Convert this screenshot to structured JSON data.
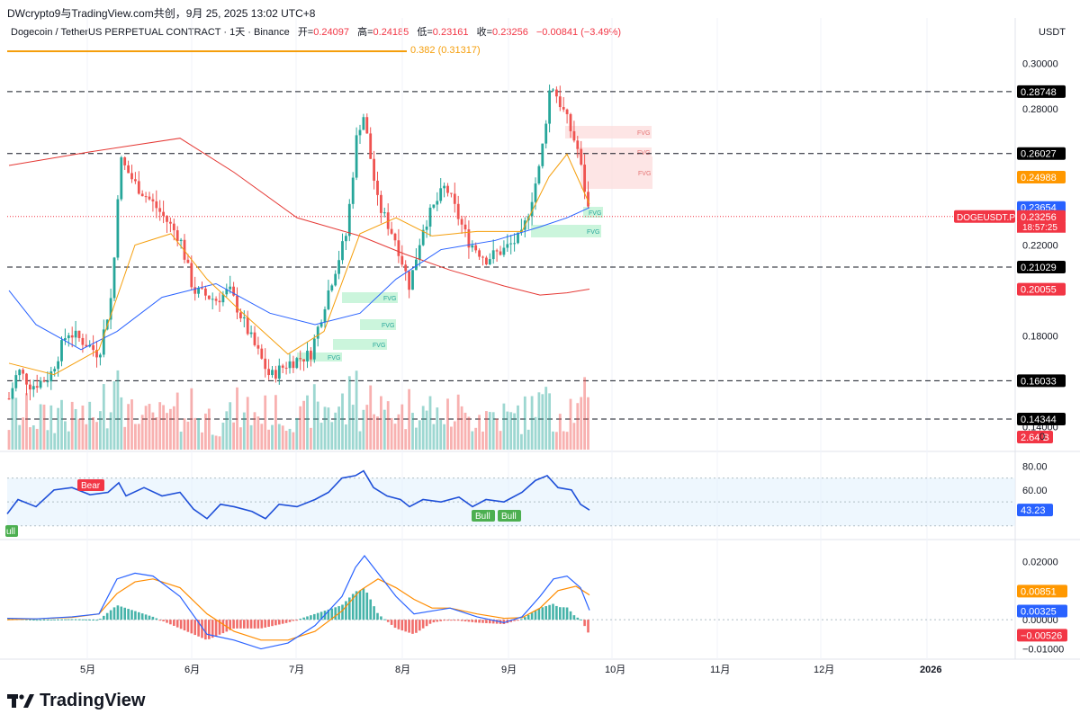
{
  "header": {
    "attribution": "DWcrypto9与TradingView.com共创，9月 25, 2025 13:02 UTC+8",
    "symbol_desc": "Dogecoin / TetherUS PERPETUAL CONTRACT · 1天 · Binance",
    "open_label": "开=",
    "open_value": "0.24097",
    "high_label": "高=",
    "high_value": "0.24185",
    "low_label": "低=",
    "low_value": "0.23161",
    "close_label": "收=",
    "close_value": "0.23256",
    "change": "−0.00841 (−3.49%)",
    "currency": "USDT",
    "fib_label": "0.382 (0.31317)"
  },
  "colors": {
    "up": "#26a69a",
    "down": "#ef5350",
    "ema_fast": "#f59e0b",
    "ema_mid": "#2962ff",
    "ema_slow": "#e53935",
    "rsi": "#1e4fd8",
    "macd": "#2962ff",
    "signal": "#ff8c00",
    "fvg_green": "#b9f2d0",
    "fvg_red": "#fcdcdc"
  },
  "price_axis": {
    "ticks": [
      "0.30000",
      "0.28000",
      "0.22000",
      "0.18000",
      "0.14000"
    ],
    "badges": [
      {
        "label": "0.28748",
        "value": 0.28748,
        "bg": "#000000"
      },
      {
        "label": "0.26027",
        "value": 0.26027,
        "bg": "#000000"
      },
      {
        "label": "0.24988",
        "value": 0.24988,
        "bg": "#ff9800"
      },
      {
        "label": "0.23654",
        "value": 0.23654,
        "bg": "#2962ff"
      },
      {
        "label": "0.23256",
        "value": 0.23256,
        "bg": "#f23645"
      },
      {
        "label": "0.21029",
        "value": 0.21029,
        "bg": "#000000"
      },
      {
        "label": "0.20055",
        "value": 0.20055,
        "bg": "#f23645"
      },
      {
        "label": "0.16033",
        "value": 0.16033,
        "bg": "#000000"
      },
      {
        "label": "0.14344",
        "value": 0.14344,
        "bg": "#000000"
      }
    ],
    "symbol_tag": "DOGEUSDT.P",
    "countdown": "18:57:25",
    "volume_badge": "2.64 B",
    "volume_tick": "0"
  },
  "rsi_axis": {
    "ticks": [
      "80.00",
      "60.00"
    ],
    "badge": "43.23"
  },
  "macd_axis": {
    "ticks": [
      "0.02000",
      "0.00000",
      "−0.01000"
    ],
    "badges": [
      {
        "label": "0.00851",
        "bg": "#ff9800"
      },
      {
        "label": "0.00325",
        "bg": "#2962ff"
      },
      {
        "label": "−0.00526",
        "bg": "#f23645"
      }
    ]
  },
  "time_axis": [
    "5月",
    "6月",
    "7月",
    "8月",
    "9月",
    "10月",
    "11月",
    "12月",
    "2026"
  ],
  "annotations": {
    "fvg": "FVG",
    "bear": "Bear",
    "bull": "Bull",
    "bull_partial": "ull"
  },
  "brand": "TradingView",
  "chart_data": {
    "type": "candlestick",
    "title": "Dogecoin / TetherUS PERPETUAL CONTRACT · 1天 · Binance",
    "ylim": [
      0.13,
      0.31
    ],
    "horizontal_levels": [
      0.28748,
      0.26027,
      0.21029,
      0.16033,
      0.14344
    ],
    "fib_level": {
      "label": "0.382",
      "value": 0.31317
    },
    "anchors": [
      {
        "x": 10,
        "v": 0.1525
      },
      {
        "x": 20,
        "v": 0.165
      },
      {
        "x": 35,
        "v": 0.158
      },
      {
        "x": 55,
        "v": 0.162
      },
      {
        "x": 75,
        "v": 0.182
      },
      {
        "x": 95,
        "v": 0.177
      },
      {
        "x": 110,
        "v": 0.172
      },
      {
        "x": 125,
        "v": 0.2
      },
      {
        "x": 133,
        "v": 0.258
      },
      {
        "x": 150,
        "v": 0.247
      },
      {
        "x": 175,
        "v": 0.236
      },
      {
        "x": 200,
        "v": 0.223
      },
      {
        "x": 215,
        "v": 0.2
      },
      {
        "x": 240,
        "v": 0.196
      },
      {
        "x": 255,
        "v": 0.2
      },
      {
        "x": 280,
        "v": 0.178
      },
      {
        "x": 300,
        "v": 0.162
      },
      {
        "x": 320,
        "v": 0.168
      },
      {
        "x": 345,
        "v": 0.172
      },
      {
        "x": 365,
        "v": 0.2
      },
      {
        "x": 385,
        "v": 0.225
      },
      {
        "x": 397,
        "v": 0.27
      },
      {
        "x": 404,
        "v": 0.277
      },
      {
        "x": 420,
        "v": 0.238
      },
      {
        "x": 440,
        "v": 0.222
      },
      {
        "x": 455,
        "v": 0.202
      },
      {
        "x": 470,
        "v": 0.228
      },
      {
        "x": 495,
        "v": 0.246
      },
      {
        "x": 520,
        "v": 0.222
      },
      {
        "x": 540,
        "v": 0.214
      },
      {
        "x": 560,
        "v": 0.218
      },
      {
        "x": 580,
        "v": 0.224
      },
      {
        "x": 600,
        "v": 0.255
      },
      {
        "x": 612,
        "v": 0.292
      },
      {
        "x": 628,
        "v": 0.277
      },
      {
        "x": 642,
        "v": 0.262
      },
      {
        "x": 655,
        "v": 0.2325
      }
    ],
    "ema_fast": [
      [
        10,
        0.168
      ],
      [
        60,
        0.163
      ],
      [
        110,
        0.174
      ],
      [
        150,
        0.22
      ],
      [
        190,
        0.225
      ],
      [
        230,
        0.205
      ],
      [
        270,
        0.19
      ],
      [
        320,
        0.172
      ],
      [
        360,
        0.182
      ],
      [
        400,
        0.225
      ],
      [
        440,
        0.232
      ],
      [
        480,
        0.224
      ],
      [
        530,
        0.226
      ],
      [
        580,
        0.226
      ],
      [
        610,
        0.25
      ],
      [
        630,
        0.26
      ],
      [
        655,
        0.238
      ]
    ],
    "ema_mid": [
      [
        10,
        0.2
      ],
      [
        40,
        0.185
      ],
      [
        90,
        0.174
      ],
      [
        130,
        0.182
      ],
      [
        180,
        0.197
      ],
      [
        240,
        0.203
      ],
      [
        300,
        0.19
      ],
      [
        350,
        0.185
      ],
      [
        400,
        0.19
      ],
      [
        440,
        0.205
      ],
      [
        490,
        0.218
      ],
      [
        550,
        0.222
      ],
      [
        600,
        0.228
      ],
      [
        630,
        0.232
      ],
      [
        655,
        0.2365
      ]
    ],
    "ema_slow": [
      [
        10,
        0.255
      ],
      [
        100,
        0.261
      ],
      [
        200,
        0.267
      ],
      [
        260,
        0.252
      ],
      [
        330,
        0.232
      ],
      [
        400,
        0.224
      ],
      [
        450,
        0.216
      ],
      [
        500,
        0.209
      ],
      [
        560,
        0.202
      ],
      [
        600,
        0.198
      ],
      [
        630,
        0.199
      ],
      [
        655,
        0.2006
      ]
    ],
    "rsi": {
      "ylim": [
        20,
        90
      ],
      "band": [
        30,
        70
      ],
      "midline": 50,
      "last": 43.23,
      "points": [
        [
          8,
          40
        ],
        [
          20,
          52
        ],
        [
          40,
          46
        ],
        [
          60,
          60
        ],
        [
          80,
          62
        ],
        [
          100,
          56
        ],
        [
          120,
          58
        ],
        [
          132,
          66
        ],
        [
          140,
          55
        ],
        [
          160,
          62
        ],
        [
          180,
          55
        ],
        [
          200,
          58
        ],
        [
          215,
          44
        ],
        [
          230,
          36
        ],
        [
          245,
          48
        ],
        [
          260,
          46
        ],
        [
          280,
          42
        ],
        [
          295,
          36
        ],
        [
          310,
          48
        ],
        [
          330,
          46
        ],
        [
          350,
          52
        ],
        [
          365,
          58
        ],
        [
          380,
          70
        ],
        [
          395,
          72
        ],
        [
          404,
          76
        ],
        [
          415,
          62
        ],
        [
          430,
          55
        ],
        [
          445,
          52
        ],
        [
          455,
          46
        ],
        [
          470,
          52
        ],
        [
          490,
          50
        ],
        [
          510,
          54
        ],
        [
          525,
          46
        ],
        [
          540,
          52
        ],
        [
          560,
          50
        ],
        [
          580,
          58
        ],
        [
          595,
          68
        ],
        [
          608,
          72
        ],
        [
          620,
          62
        ],
        [
          635,
          60
        ],
        [
          645,
          48
        ],
        [
          655,
          43.2
        ]
      ]
    },
    "macd": {
      "ylim": [
        -0.012,
        0.026
      ],
      "last_macd": 0.00325,
      "last_signal": 0.00851,
      "last_hist": -0.00526,
      "macd_points": [
        [
          8,
          0.0005
        ],
        [
          40,
          0.0003
        ],
        [
          80,
          0.001
        ],
        [
          110,
          0.002
        ],
        [
          130,
          0.014
        ],
        [
          150,
          0.016
        ],
        [
          170,
          0.015
        ],
        [
          200,
          0.008
        ],
        [
          230,
          -0.005
        ],
        [
          260,
          -0.007
        ],
        [
          290,
          -0.01
        ],
        [
          320,
          -0.008
        ],
        [
          350,
          -0.002
        ],
        [
          380,
          0.008
        ],
        [
          395,
          0.018
        ],
        [
          405,
          0.022
        ],
        [
          420,
          0.016
        ],
        [
          440,
          0.008
        ],
        [
          460,
          0.002
        ],
        [
          480,
          0.003
        ],
        [
          500,
          0.004
        ],
        [
          530,
          0.001
        ],
        [
          560,
          -0.001
        ],
        [
          580,
          0.001
        ],
        [
          600,
          0.008
        ],
        [
          615,
          0.014
        ],
        [
          630,
          0.015
        ],
        [
          645,
          0.011
        ],
        [
          655,
          0.00325
        ]
      ],
      "signal_points": [
        [
          8,
          0.0
        ],
        [
          40,
          0.0003
        ],
        [
          80,
          0.0008
        ],
        [
          110,
          0.002
        ],
        [
          130,
          0.009
        ],
        [
          150,
          0.013
        ],
        [
          170,
          0.014
        ],
        [
          200,
          0.011
        ],
        [
          230,
          0.002
        ],
        [
          260,
          -0.004
        ],
        [
          290,
          -0.007
        ],
        [
          320,
          -0.007
        ],
        [
          350,
          -0.004
        ],
        [
          380,
          0.003
        ],
        [
          400,
          0.01
        ],
        [
          420,
          0.014
        ],
        [
          440,
          0.011
        ],
        [
          460,
          0.007
        ],
        [
          480,
          0.004
        ],
        [
          500,
          0.004
        ],
        [
          530,
          0.002
        ],
        [
          560,
          0.0005
        ],
        [
          580,
          0.0007
        ],
        [
          600,
          0.004
        ],
        [
          620,
          0.01
        ],
        [
          640,
          0.0115
        ],
        [
          655,
          0.00851
        ]
      ]
    }
  }
}
